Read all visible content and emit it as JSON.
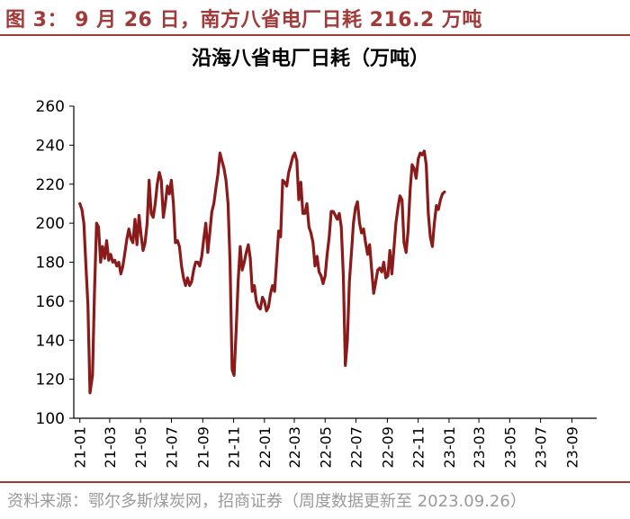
{
  "figure": {
    "title": "图 3： 9 月 26 日，南方八省电厂日耗 216.2 万吨",
    "source": "资料来源：鄂尔多斯煤炭网，招商证券（周度数据更新至 2023.09.26）"
  },
  "chart_data": {
    "type": "line",
    "title": "沿海八省电厂日耗（万吨）",
    "xlabel": "",
    "ylabel": "",
    "ylim": [
      100,
      260
    ],
    "yticks": [
      100,
      120,
      140,
      160,
      180,
      200,
      220,
      240,
      260
    ],
    "xlim": [
      "2020-12-20",
      "2023-10-20"
    ],
    "xticks": [
      "21-01",
      "21-03",
      "21-05",
      "21-07",
      "21-09",
      "21-11",
      "22-01",
      "22-03",
      "22-05",
      "22-07",
      "22-09",
      "22-11",
      "23-01",
      "23-03",
      "23-05",
      "23-07",
      "23-09"
    ],
    "grid": false,
    "legend": "none",
    "line_color": "#8b1a1a",
    "series": [
      {
        "points": [
          [
            "2021-01-01",
            210
          ],
          [
            "2021-01-05",
            207
          ],
          [
            "2021-01-09",
            200
          ],
          [
            "2021-01-13",
            178
          ],
          [
            "2021-01-17",
            158
          ],
          [
            "2021-01-21",
            113
          ],
          [
            "2021-01-26",
            122
          ],
          [
            "2021-01-30",
            165
          ],
          [
            "2021-02-03",
            200
          ],
          [
            "2021-02-07",
            198
          ],
          [
            "2021-02-11",
            180
          ],
          [
            "2021-02-15",
            188
          ],
          [
            "2021-02-19",
            182
          ],
          [
            "2021-02-23",
            191
          ],
          [
            "2021-02-27",
            181
          ],
          [
            "2021-03-03",
            184
          ],
          [
            "2021-03-07",
            180
          ],
          [
            "2021-03-11",
            181
          ],
          [
            "2021-03-15",
            178
          ],
          [
            "2021-03-19",
            180
          ],
          [
            "2021-03-23",
            174
          ],
          [
            "2021-03-27",
            178
          ],
          [
            "2021-03-31",
            185
          ],
          [
            "2021-04-04",
            192
          ],
          [
            "2021-04-08",
            197
          ],
          [
            "2021-04-12",
            192
          ],
          [
            "2021-04-16",
            190
          ],
          [
            "2021-04-20",
            202
          ],
          [
            "2021-04-24",
            189
          ],
          [
            "2021-04-28",
            204
          ],
          [
            "2021-05-02",
            194
          ],
          [
            "2021-05-06",
            186
          ],
          [
            "2021-05-10",
            190
          ],
          [
            "2021-05-14",
            200
          ],
          [
            "2021-05-18",
            222
          ],
          [
            "2021-05-22",
            205
          ],
          [
            "2021-05-26",
            203
          ],
          [
            "2021-05-30",
            210
          ],
          [
            "2021-06-03",
            220
          ],
          [
            "2021-06-07",
            226
          ],
          [
            "2021-06-11",
            222
          ],
          [
            "2021-06-15",
            203
          ],
          [
            "2021-06-19",
            210
          ],
          [
            "2021-06-23",
            219
          ],
          [
            "2021-06-27",
            215
          ],
          [
            "2021-07-01",
            222
          ],
          [
            "2021-07-05",
            210
          ],
          [
            "2021-07-09",
            190
          ],
          [
            "2021-07-13",
            191
          ],
          [
            "2021-07-17",
            188
          ],
          [
            "2021-07-21",
            178
          ],
          [
            "2021-07-25",
            172
          ],
          [
            "2021-07-29",
            168
          ],
          [
            "2021-08-02",
            172
          ],
          [
            "2021-08-06",
            168
          ],
          [
            "2021-08-10",
            170
          ],
          [
            "2021-08-14",
            176
          ],
          [
            "2021-08-18",
            180
          ],
          [
            "2021-08-22",
            180
          ],
          [
            "2021-08-26",
            178
          ],
          [
            "2021-08-30",
            183
          ],
          [
            "2021-09-03",
            192
          ],
          [
            "2021-09-07",
            200
          ],
          [
            "2021-09-11",
            185
          ],
          [
            "2021-09-15",
            195
          ],
          [
            "2021-09-19",
            206
          ],
          [
            "2021-09-23",
            210
          ],
          [
            "2021-09-27",
            218
          ],
          [
            "2021-10-01",
            225
          ],
          [
            "2021-10-05",
            236
          ],
          [
            "2021-10-09",
            232
          ],
          [
            "2021-10-13",
            228
          ],
          [
            "2021-10-17",
            222
          ],
          [
            "2021-10-21",
            210
          ],
          [
            "2021-10-25",
            180
          ],
          [
            "2021-10-29",
            125
          ],
          [
            "2021-11-02",
            122
          ],
          [
            "2021-11-06",
            145
          ],
          [
            "2021-11-10",
            170
          ],
          [
            "2021-11-14",
            188
          ],
          [
            "2021-11-18",
            176
          ],
          [
            "2021-11-22",
            180
          ],
          [
            "2021-11-26",
            185
          ],
          [
            "2021-11-30",
            189
          ],
          [
            "2021-12-04",
            182
          ],
          [
            "2021-12-08",
            165
          ],
          [
            "2021-12-12",
            168
          ],
          [
            "2021-12-16",
            160
          ],
          [
            "2021-12-20",
            157
          ],
          [
            "2021-12-24",
            156
          ],
          [
            "2021-12-28",
            162
          ],
          [
            "2022-01-01",
            160
          ],
          [
            "2022-01-05",
            155
          ],
          [
            "2022-01-09",
            157
          ],
          [
            "2022-01-13",
            164
          ],
          [
            "2022-01-17",
            168
          ],
          [
            "2022-01-21",
            165
          ],
          [
            "2022-01-25",
            180
          ],
          [
            "2022-01-29",
            196
          ],
          [
            "2022-02-02",
            193
          ],
          [
            "2022-02-06",
            222
          ],
          [
            "2022-02-10",
            221
          ],
          [
            "2022-02-14",
            219
          ],
          [
            "2022-02-18",
            226
          ],
          [
            "2022-02-22",
            230
          ],
          [
            "2022-02-26",
            234
          ],
          [
            "2022-03-02",
            236
          ],
          [
            "2022-03-06",
            232
          ],
          [
            "2022-03-10",
            212
          ],
          [
            "2022-03-14",
            221
          ],
          [
            "2022-03-18",
            205
          ],
          [
            "2022-03-22",
            205
          ],
          [
            "2022-03-26",
            210
          ],
          [
            "2022-03-30",
            198
          ],
          [
            "2022-04-03",
            195
          ],
          [
            "2022-04-07",
            190
          ],
          [
            "2022-04-11",
            178
          ],
          [
            "2022-04-15",
            183
          ],
          [
            "2022-04-19",
            175
          ],
          [
            "2022-04-23",
            173
          ],
          [
            "2022-04-27",
            169
          ],
          [
            "2022-05-01",
            173
          ],
          [
            "2022-05-05",
            184
          ],
          [
            "2022-05-09",
            193
          ],
          [
            "2022-05-13",
            206
          ],
          [
            "2022-05-17",
            206
          ],
          [
            "2022-05-21",
            204
          ],
          [
            "2022-05-25",
            202
          ],
          [
            "2022-05-29",
            205
          ],
          [
            "2022-06-02",
            198
          ],
          [
            "2022-06-06",
            173
          ],
          [
            "2022-06-10",
            127
          ],
          [
            "2022-06-14",
            140
          ],
          [
            "2022-06-18",
            170
          ],
          [
            "2022-06-22",
            185
          ],
          [
            "2022-06-26",
            200
          ],
          [
            "2022-06-30",
            208
          ],
          [
            "2022-07-04",
            211
          ],
          [
            "2022-07-08",
            200
          ],
          [
            "2022-07-12",
            195
          ],
          [
            "2022-07-16",
            197
          ],
          [
            "2022-07-20",
            190
          ],
          [
            "2022-07-24",
            184
          ],
          [
            "2022-07-28",
            189
          ],
          [
            "2022-08-01",
            176
          ],
          [
            "2022-08-05",
            164
          ],
          [
            "2022-08-09",
            170
          ],
          [
            "2022-08-13",
            176
          ],
          [
            "2022-08-17",
            177
          ],
          [
            "2022-08-21",
            175
          ],
          [
            "2022-08-25",
            180
          ],
          [
            "2022-08-29",
            172
          ],
          [
            "2022-09-02",
            173
          ],
          [
            "2022-09-06",
            186
          ],
          [
            "2022-09-10",
            174
          ],
          [
            "2022-09-14",
            187
          ],
          [
            "2022-09-18",
            200
          ],
          [
            "2022-09-22",
            208
          ],
          [
            "2022-09-26",
            214
          ],
          [
            "2022-09-30",
            212
          ],
          [
            "2022-10-04",
            190
          ],
          [
            "2022-10-08",
            185
          ],
          [
            "2022-10-12",
            196
          ],
          [
            "2022-10-16",
            217
          ],
          [
            "2022-10-20",
            230
          ],
          [
            "2022-10-24",
            228
          ],
          [
            "2022-10-28",
            223
          ],
          [
            "2022-11-01",
            233
          ],
          [
            "2022-11-05",
            236
          ],
          [
            "2022-11-09",
            235
          ],
          [
            "2022-11-13",
            237
          ],
          [
            "2022-11-17",
            230
          ],
          [
            "2022-11-21",
            205
          ],
          [
            "2022-11-25",
            193
          ],
          [
            "2022-11-29",
            188
          ],
          [
            "2022-12-03",
            200
          ],
          [
            "2022-12-07",
            209
          ],
          [
            "2022-12-11",
            207
          ],
          [
            "2022-12-15",
            212
          ],
          [
            "2022-12-19",
            215
          ],
          [
            "2022-12-23",
            216
          ]
        ]
      }
    ]
  }
}
